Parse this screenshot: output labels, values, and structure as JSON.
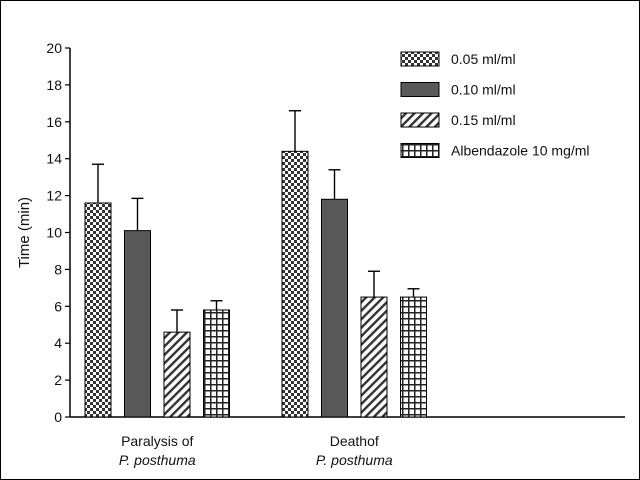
{
  "chart_data": {
    "type": "bar",
    "title": "",
    "xlabel": "",
    "ylabel": "Time (min)",
    "ylim": [
      0,
      20
    ],
    "yticks": [
      0,
      2,
      4,
      6,
      8,
      10,
      12,
      14,
      16,
      18,
      20
    ],
    "grid": false,
    "legend_position": "top-right",
    "categories": [
      {
        "line1": "Paralysis of",
        "line2": "P. posthuma"
      },
      {
        "line1": "Deathof",
        "line2": "P. posthuma"
      }
    ],
    "series": [
      {
        "name": "0.05 ml/ml",
        "pattern": "checker",
        "values": [
          11.6,
          14.4
        ],
        "errors": [
          2.1,
          2.2
        ]
      },
      {
        "name": "0.10 ml/ml",
        "pattern": "solid",
        "color": "#595959",
        "values": [
          10.1,
          11.8
        ],
        "errors": [
          1.75,
          1.6
        ]
      },
      {
        "name": "0.15 ml/ml",
        "pattern": "diagonal",
        "values": [
          4.6,
          6.5
        ],
        "errors": [
          1.2,
          1.4
        ]
      },
      {
        "name": "Albendazole 10 mg/ml",
        "pattern": "grid",
        "values": [
          5.8,
          6.5
        ],
        "errors": [
          0.5,
          0.45
        ]
      }
    ]
  }
}
